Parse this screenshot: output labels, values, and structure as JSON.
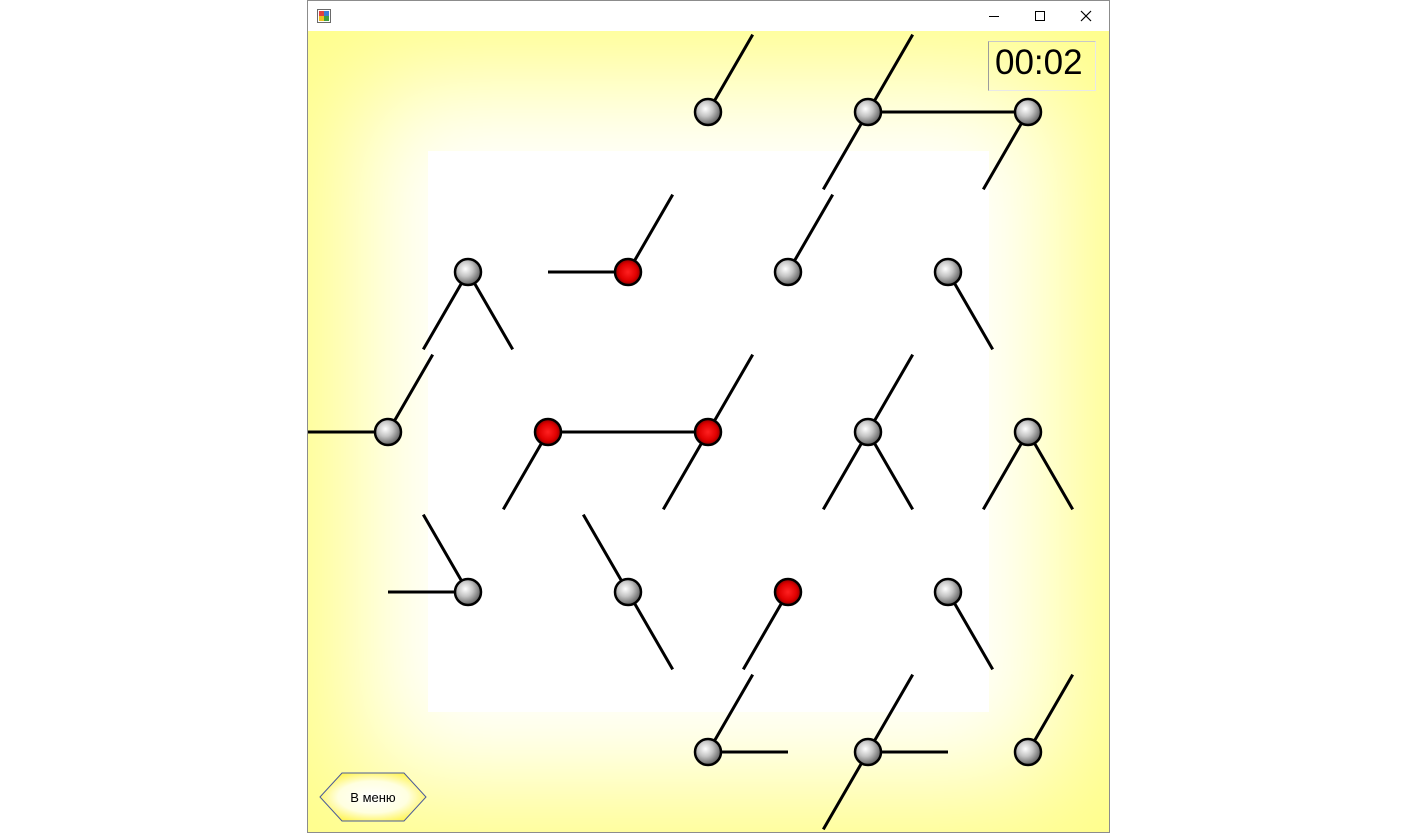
{
  "window": {
    "title": "",
    "controls": [
      "minimize",
      "maximize",
      "close"
    ]
  },
  "timer": {
    "value": "00:02"
  },
  "menu_button": {
    "label": "В меню"
  },
  "board": {
    "colors": {
      "node": "#8a8a8a",
      "active_node": "#e00000",
      "background_edge": "#fffe8a",
      "background_center": "#ffffff",
      "line": "#000000"
    },
    "nodes": [
      {
        "col": 1,
        "row": 0,
        "active": false,
        "angles": [
          60
        ]
      },
      {
        "col": 2,
        "row": 0,
        "active": false,
        "angles": [
          240,
          60,
          0
        ]
      },
      {
        "col": 3,
        "row": 0,
        "active": false,
        "angles": [
          180,
          240
        ]
      },
      {
        "col": 0,
        "row": 1,
        "active": false,
        "angles": [
          300,
          240
        ]
      },
      {
        "col": 1,
        "row": 1,
        "active": true,
        "angles": [
          180,
          60
        ]
      },
      {
        "col": 2,
        "row": 1,
        "active": false,
        "angles": [
          60
        ]
      },
      {
        "col": 3,
        "row": 1,
        "active": false,
        "angles": [
          300
        ]
      },
      {
        "col": -1,
        "row": 2,
        "active": false,
        "angles": [
          180,
          60
        ]
      },
      {
        "col": 0,
        "row": 2,
        "active": true,
        "angles": [
          240,
          0
        ]
      },
      {
        "col": 1,
        "row": 2,
        "active": true,
        "angles": [
          180,
          240,
          60
        ]
      },
      {
        "col": 2,
        "row": 2,
        "active": false,
        "angles": [
          240,
          300,
          60
        ]
      },
      {
        "col": 3,
        "row": 2,
        "active": false,
        "angles": [
          240,
          300
        ]
      },
      {
        "col": 0,
        "row": 3,
        "active": false,
        "angles": [
          180,
          120
        ]
      },
      {
        "col": 1,
        "row": 3,
        "active": false,
        "angles": [
          300,
          120
        ]
      },
      {
        "col": 2,
        "row": 3,
        "active": true,
        "angles": [
          240
        ]
      },
      {
        "col": 3,
        "row": 3,
        "active": false,
        "angles": [
          300
        ]
      },
      {
        "col": 1,
        "row": 4,
        "active": false,
        "angles": [
          0,
          60
        ]
      },
      {
        "col": 2,
        "row": 4,
        "active": false,
        "angles": [
          240,
          0,
          60
        ]
      },
      {
        "col": 3,
        "row": 4,
        "active": false,
        "angles": [
          60
        ]
      }
    ]
  }
}
